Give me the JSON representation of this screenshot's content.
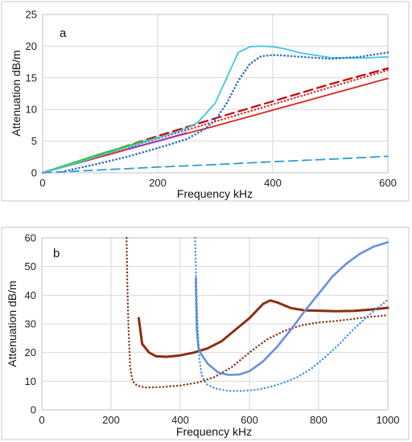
{
  "chart_data": [
    {
      "type": "line",
      "panel_label": "a",
      "xlabel": "Frequency  kHz",
      "ylabel": "Attenuation  dB/m",
      "xlim": [
        0,
        600
      ],
      "ylim": [
        0,
        25
      ],
      "xticks": [
        "0",
        "200",
        "400",
        "600"
      ],
      "yticks": [
        "0",
        "5",
        "10",
        "15",
        "20",
        "25"
      ],
      "grid": true,
      "series": [
        {
          "color": "#2e9bd6",
          "style": "dashed",
          "width": 1.8,
          "x": [
            0,
            100,
            200,
            300,
            400,
            500,
            600
          ],
          "y": [
            0,
            0.45,
            0.9,
            1.3,
            1.75,
            2.15,
            2.6
          ]
        },
        {
          "color": "#e02020",
          "style": "solid",
          "width": 1.8,
          "x": [
            0,
            100,
            200,
            300,
            400,
            500,
            600
          ],
          "y": [
            0,
            2.5,
            5.0,
            7.4,
            9.9,
            12.4,
            14.9
          ]
        },
        {
          "color": "#e02020",
          "style": "dotted",
          "width": 2.4,
          "x": [
            0,
            100,
            200,
            300,
            400,
            500,
            600
          ],
          "y": [
            0,
            2.7,
            5.4,
            8.1,
            10.8,
            13.5,
            16.2
          ]
        },
        {
          "color": "#c00000",
          "style": "dashed",
          "width": 2.2,
          "x": [
            0,
            100,
            200,
            300,
            400,
            500,
            600
          ],
          "y": [
            0,
            2.9,
            5.8,
            8.6,
            11.3,
            14.0,
            16.5
          ]
        },
        {
          "color": "#33cc33",
          "style": "solid",
          "width": 2,
          "x": [
            10,
            50,
            100,
            150,
            200
          ],
          "y": [
            0.3,
            1.5,
            3.0,
            4.3,
            5.6
          ]
        },
        {
          "color": "#8a3cc8",
          "style": "solid",
          "width": 2,
          "x": [
            150,
            200,
            250
          ],
          "y": [
            3.8,
            5.0,
            6.3
          ]
        },
        {
          "color": "#3fc8e0",
          "style": "solid",
          "width": 1.8,
          "x": [
            0,
            50,
            100,
            150,
            200,
            250,
            270,
            300,
            320,
            340,
            360,
            380,
            400,
            420,
            450,
            500,
            550,
            600
          ],
          "y": [
            0,
            1.3,
            2.7,
            4.1,
            5.5,
            7.0,
            8.0,
            11.0,
            15.0,
            19.0,
            19.9,
            20.0,
            19.9,
            19.6,
            18.9,
            18.2,
            18.1,
            18.3
          ]
        },
        {
          "color": "#2f6fc6",
          "style": "dotted",
          "width": 2.6,
          "x": [
            40,
            100,
            150,
            200,
            250,
            280,
            300,
            320,
            340,
            360,
            380,
            400,
            420,
            450,
            500,
            550,
            600
          ],
          "y": [
            0.3,
            1.5,
            2.6,
            3.9,
            5.3,
            6.8,
            8.3,
            11.0,
            14.5,
            17.2,
            18.4,
            18.6,
            18.5,
            18.3,
            18.0,
            18.3,
            19.0
          ]
        }
      ]
    },
    {
      "type": "line",
      "panel_label": "b",
      "xlabel": "Frequency  kHz",
      "ylabel": "Attenuation  dB/m",
      "xlim": [
        0,
        1000
      ],
      "ylim": [
        0,
        60
      ],
      "xticks": [
        "0",
        "200",
        "400",
        "600",
        "800",
        "1000"
      ],
      "yticks": [
        "0",
        "10",
        "20",
        "30",
        "40",
        "50",
        "60"
      ],
      "grid": true,
      "series": [
        {
          "color": "#8b2e12",
          "style": "solid",
          "width": 3,
          "x": [
            280,
            290,
            310,
            330,
            360,
            400,
            440,
            480,
            520,
            560,
            600,
            640,
            660,
            680,
            720,
            760,
            800,
            850,
            900,
            950,
            1000
          ],
          "y": [
            32,
            23,
            20,
            18.7,
            18.5,
            19.0,
            20.0,
            21.5,
            24.0,
            28.0,
            32.0,
            37.0,
            38.2,
            37.5,
            35.5,
            34.7,
            34.6,
            34.4,
            34.5,
            35.0,
            35.6
          ]
        },
        {
          "color": "#8b2e12",
          "style": "dotted",
          "width": 2.4,
          "x": [
            245,
            247,
            250,
            255,
            262,
            275,
            300,
            350,
            400,
            450,
            500,
            550,
            600,
            650,
            700,
            750,
            800,
            850,
            900,
            950,
            1000
          ],
          "y": [
            60,
            45,
            30,
            15,
            10,
            8.5,
            7.8,
            8.0,
            8.5,
            9.5,
            11.5,
            15.0,
            20.0,
            24.5,
            27.5,
            29.5,
            30.5,
            31.0,
            31.7,
            32.5,
            33.0
          ]
        },
        {
          "color": "#6a8fdb",
          "style": "solid",
          "width": 2.6,
          "x": [
            445,
            446,
            448,
            452,
            460,
            480,
            510,
            540,
            570,
            600,
            640,
            680,
            720,
            760,
            800,
            840,
            880,
            920,
            960,
            1000
          ],
          "y": [
            46,
            38,
            28,
            22,
            19.5,
            16.0,
            13.0,
            12.2,
            12.3,
            13.5,
            17.0,
            22.0,
            28.0,
            34.5,
            40.5,
            46.5,
            51.0,
            54.5,
            57.0,
            58.5
          ]
        },
        {
          "color": "#3f8fe0",
          "style": "dotted",
          "width": 2.4,
          "x": [
            443,
            446,
            450,
            455,
            462,
            475,
            500,
            540,
            580,
            620,
            660,
            700,
            740,
            780,
            820,
            860,
            900,
            940,
            980,
            1000
          ],
          "y": [
            60,
            45,
            30,
            18,
            12,
            9.0,
            7.5,
            6.6,
            6.6,
            7.0,
            8.0,
            9.5,
            11.5,
            14.5,
            18.5,
            23.0,
            28.0,
            32.5,
            36.5,
            38.5
          ]
        }
      ]
    }
  ]
}
